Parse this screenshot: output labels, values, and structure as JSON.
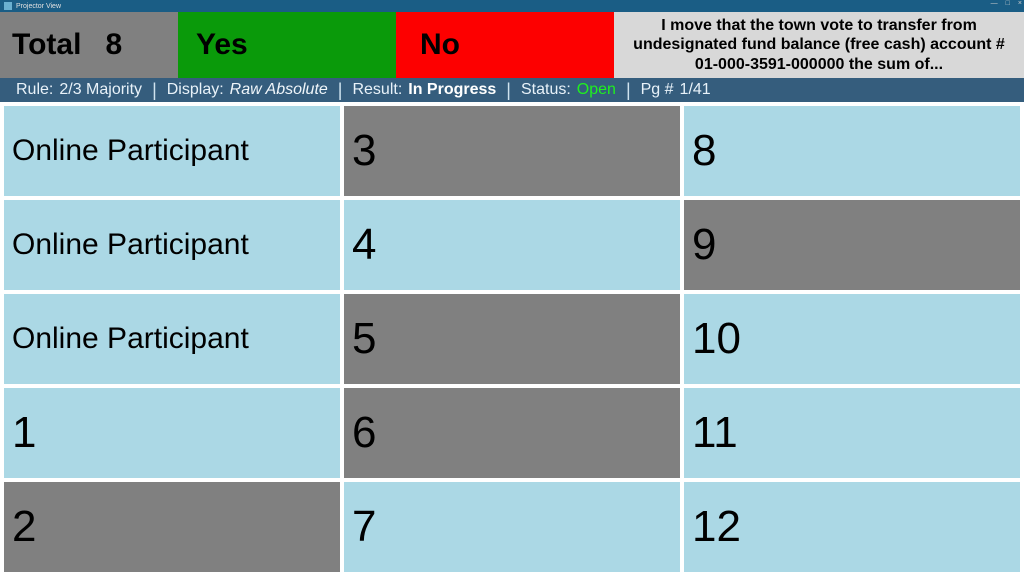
{
  "window": {
    "title": "Projector View"
  },
  "header": {
    "total_label": "Total",
    "total_count": "8",
    "yes_label": "Yes",
    "no_label": "No",
    "motion_text": "I move that the town vote to transfer from undesignated fund balance (free cash) account # 01-000-3591-000000 the sum of..."
  },
  "status": {
    "rule_label": "Rule:",
    "rule_value": "2/3 Majority",
    "display_label": "Display:",
    "display_value": "Raw Absolute",
    "result_label": "Result:",
    "result_value": "In Progress",
    "status_label": "Status:",
    "status_value": "Open",
    "page_label": "Pg #",
    "page_value": "1/41"
  },
  "colors": {
    "titlebar": "#1a5d85",
    "total_bg": "#808080",
    "yes_bg": "#0a9a0a",
    "no_bg": "#fd0000",
    "motion_bg": "#d8d8d8",
    "statusbar_bg": "#355d7d",
    "cell_light": "#abd8e5",
    "cell_gray": "#808080",
    "open_text": "#1ff01f"
  },
  "grid": {
    "columns": 3,
    "rows": 5,
    "cells": [
      {
        "label": "Online Participant",
        "shade": "light",
        "small": true
      },
      {
        "label": "3",
        "shade": "gray"
      },
      {
        "label": "8",
        "shade": "light"
      },
      {
        "label": "Online Participant",
        "shade": "light",
        "small": true
      },
      {
        "label": "4",
        "shade": "light"
      },
      {
        "label": "9",
        "shade": "gray"
      },
      {
        "label": "Online Participant",
        "shade": "light",
        "small": true
      },
      {
        "label": "5",
        "shade": "gray"
      },
      {
        "label": "10",
        "shade": "light"
      },
      {
        "label": "1",
        "shade": "light"
      },
      {
        "label": "6",
        "shade": "gray"
      },
      {
        "label": "11",
        "shade": "light"
      },
      {
        "label": "2",
        "shade": "gray"
      },
      {
        "label": "7",
        "shade": "light"
      },
      {
        "label": "12",
        "shade": "light"
      }
    ]
  }
}
